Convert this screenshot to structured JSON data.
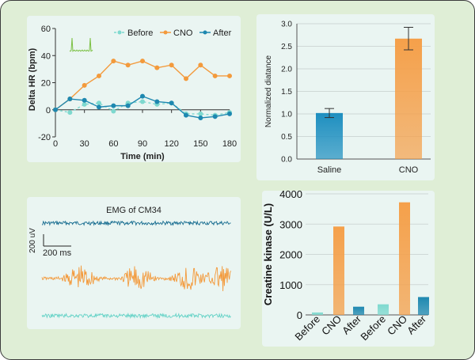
{
  "chart_data": [
    {
      "type": "line",
      "ylabel": "Delta HR (bpm)",
      "xlabel": "Time (min)",
      "xlim": [
        0,
        180
      ],
      "ylim": [
        -20,
        60
      ],
      "xticks": [
        "0",
        "30",
        "60",
        "90",
        "120",
        "150",
        "180"
      ],
      "yticks": [
        "-20",
        "0",
        "20",
        "40",
        "60"
      ],
      "legend_position": "top-right",
      "grid": false,
      "series": [
        {
          "name": "Before",
          "color": "#7ed9cf",
          "x": [
            0,
            15,
            30,
            45,
            60,
            75,
            90,
            105,
            120,
            135,
            150,
            165,
            180
          ],
          "y": [
            0,
            -2,
            4,
            5,
            -1,
            5,
            6,
            4,
            5,
            -3,
            -3,
            -4,
            -2
          ]
        },
        {
          "name": "CNO",
          "color": "#f39a3c",
          "x": [
            0,
            15,
            30,
            45,
            60,
            75,
            90,
            105,
            120,
            135,
            150,
            165,
            180
          ],
          "y": [
            0,
            8,
            18,
            25,
            36,
            33,
            36,
            31,
            33,
            23,
            33,
            25,
            25
          ]
        },
        {
          "name": "After",
          "color": "#1e88b0",
          "x": [
            0,
            15,
            30,
            45,
            60,
            75,
            90,
            105,
            120,
            135,
            150,
            165,
            180
          ],
          "y": [
            0,
            8,
            7,
            2,
            3,
            3,
            10,
            6,
            5,
            -4,
            -6,
            -5,
            -3
          ]
        }
      ]
    },
    {
      "type": "bar",
      "categories": [
        "Saline",
        "CNO"
      ],
      "values": [
        1.02,
        2.67
      ],
      "errors": [
        0.1,
        0.25
      ],
      "colors": [
        "#1e8fc0",
        "#f5a04a"
      ],
      "ylabel": "Normalized diatance",
      "ylim": [
        0,
        3.0
      ],
      "yticks": [
        "0.0",
        "0.5",
        "1.0",
        "1.5",
        "2.0",
        "2.5",
        "3.0"
      ],
      "grid": true
    },
    {
      "type": "line",
      "title": "EMG of CM34",
      "scale_bar": {
        "vertical": "200 uV",
        "horizontal": "200 ms"
      },
      "traces": [
        {
          "color": "#156b8f",
          "amplitude": 0.12
        },
        {
          "color": "#f39a3c",
          "amplitude": 0.9
        },
        {
          "color": "#63d2c6",
          "amplitude": 0.12
        }
      ]
    },
    {
      "type": "bar",
      "ylabel": "Creatine kinase (U/L)",
      "ylim": [
        0,
        4000
      ],
      "yticks": [
        "0",
        "1000",
        "2000",
        "3000",
        "4000"
      ],
      "categories": [
        "Before",
        "CNO",
        "After",
        "Before",
        "CNO",
        "After"
      ],
      "values": [
        80,
        2920,
        270,
        350,
        3720,
        590
      ],
      "colors": [
        "#7ed9cf",
        "#f5a04a",
        "#1e88b0",
        "#7ed9cf",
        "#f5a04a",
        "#1e88b0"
      ],
      "grid": true
    }
  ]
}
